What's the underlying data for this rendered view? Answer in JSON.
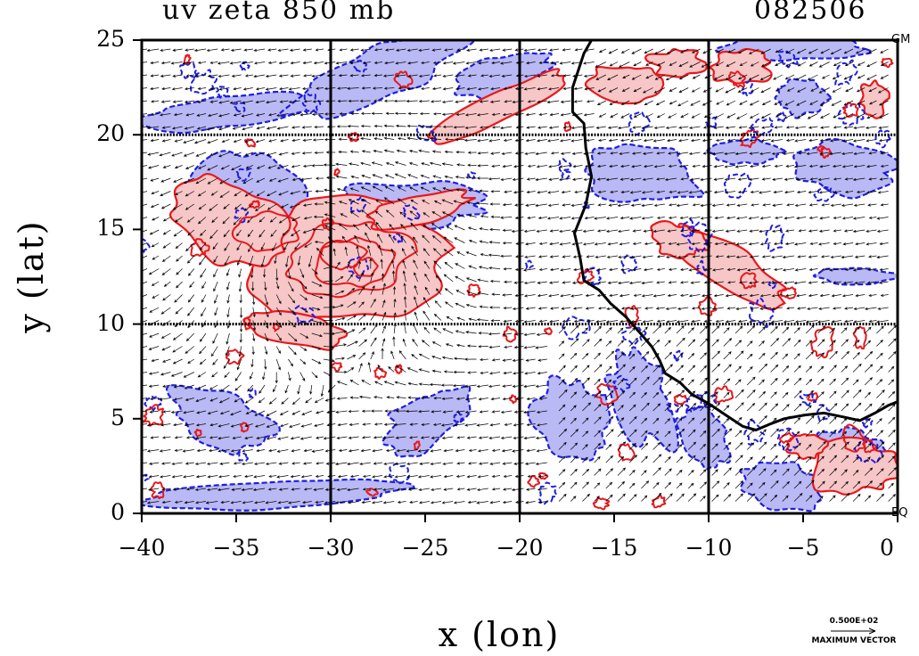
{
  "title": {
    "left": "uv zeta 850 mb",
    "right": "082506"
  },
  "axes": {
    "xlabel": "x (lon)",
    "ylabel": "y (lat)",
    "xticks": [
      "−40",
      "−35",
      "−30",
      "−25",
      "−20",
      "−15",
      "−10",
      "−5",
      "0"
    ],
    "yticks": [
      "0",
      "5",
      "10",
      "15",
      "20",
      "25"
    ],
    "xlim": [
      -40,
      0
    ],
    "ylim": [
      0,
      25
    ]
  },
  "corner_labels": {
    "top_right": "GM",
    "bottom_right": "EQ"
  },
  "legend": {
    "value": "0.500E+02",
    "label": "MAXIMUM VECTOR"
  },
  "colors": {
    "positive_contour": "#e8181c",
    "positive_fill": "#f7c6c6",
    "negative_contour": "#1e1ee0",
    "negative_fill": "#b9b9f5",
    "coastline": "#000000",
    "grid": "#000000"
  },
  "map": {
    "coastline": [
      [
        -16.2,
        25
      ],
      [
        -16.6,
        24.3
      ],
      [
        -17.2,
        22.5
      ],
      [
        -17.2,
        21.2
      ],
      [
        -16.6,
        20.6
      ],
      [
        -16.5,
        19.3
      ],
      [
        -16.2,
        17.8
      ],
      [
        -16.5,
        16.3
      ],
      [
        -17.1,
        14.8
      ],
      [
        -16.8,
        13.5
      ],
      [
        -16.6,
        12.3
      ],
      [
        -15.8,
        11.8
      ],
      [
        -15.2,
        11.1
      ],
      [
        -14.4,
        10.4
      ],
      [
        -13.6,
        9.5
      ],
      [
        -13.0,
        8.8
      ],
      [
        -12.6,
        8.1
      ],
      [
        -12.3,
        7.4
      ],
      [
        -11.5,
        6.9
      ],
      [
        -10.9,
        6.3
      ],
      [
        -10.0,
        5.8
      ],
      [
        -9.1,
        5.2
      ],
      [
        -8.2,
        4.6
      ],
      [
        -7.5,
        4.4
      ],
      [
        -6.8,
        4.7
      ],
      [
        -6.0,
        5.0
      ],
      [
        -4.9,
        5.2
      ],
      [
        -3.9,
        5.3
      ],
      [
        -2.9,
        5.1
      ],
      [
        -2.0,
        4.9
      ],
      [
        -1.2,
        5.3
      ],
      [
        -0.5,
        5.7
      ],
      [
        0,
        5.9
      ]
    ],
    "vortex_center": [
      -30.5,
      13.5
    ]
  }
}
